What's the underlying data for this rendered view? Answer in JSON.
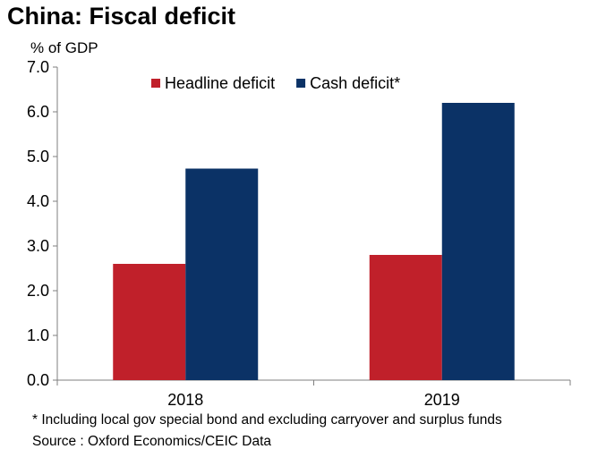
{
  "chart_data": {
    "type": "bar",
    "title": "China: Fiscal deficit",
    "ylabel": "% of GDP",
    "xlabel": "",
    "categories": [
      "2018",
      "2019"
    ],
    "series": [
      {
        "name": "Headline deficit",
        "color": "#c0202a",
        "values": [
          2.6,
          2.8
        ]
      },
      {
        "name": "Cash deficit*",
        "color": "#0b3266",
        "values": [
          4.73,
          6.2
        ]
      }
    ],
    "ylim": [
      0,
      7
    ],
    "yticks": [
      "0.0",
      "1.0",
      "2.0",
      "3.0",
      "4.0",
      "5.0",
      "6.0",
      "7.0"
    ],
    "grid": false,
    "legend": "top-center",
    "footnote": "* Including local gov special bond and excluding carryover and surplus funds",
    "source": "Source : Oxford Economics/CEIC Data"
  }
}
